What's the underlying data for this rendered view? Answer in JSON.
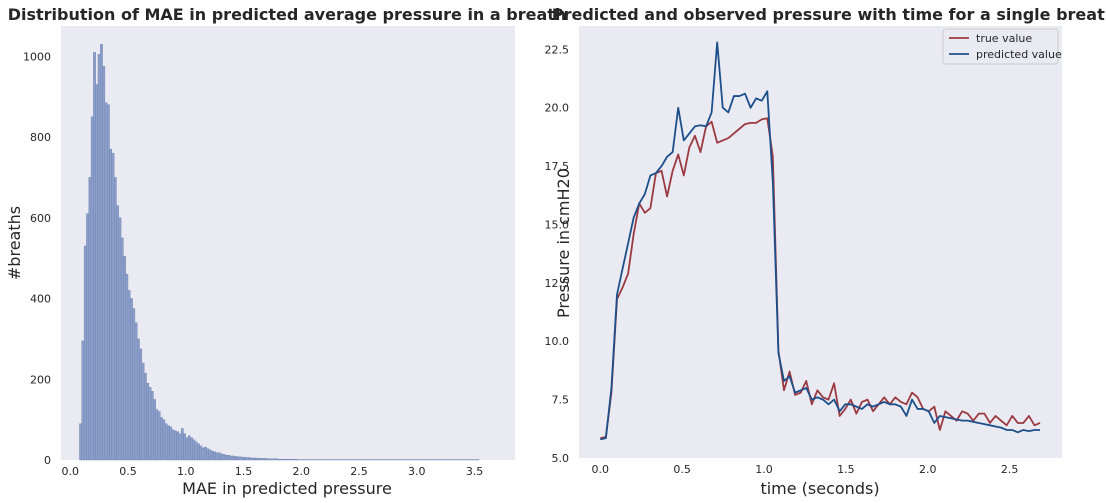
{
  "chart_data": [
    {
      "type": "bar",
      "title": "Distribution of MAE in predicted average pressure in a breath",
      "xlabel": "MAE in predicted pressure",
      "ylabel": "#breaths",
      "xlim": [
        -0.08,
        3.85
      ],
      "ylim": [
        0,
        1075
      ],
      "xticks": [
        "0.0",
        "0.5",
        "1.0",
        "1.5",
        "2.0",
        "2.5",
        "3.0",
        "3.5"
      ],
      "yticks": [
        "0",
        "200",
        "400",
        "600",
        "800",
        "1000"
      ],
      "grid": false,
      "bar_color": "#8c9fcb",
      "background": "#eaeaf2",
      "bin_width": 0.02,
      "bin_start": 0.08,
      "values": [
        90,
        295,
        530,
        610,
        700,
        850,
        1010,
        930,
        1005,
        1030,
        975,
        885,
        880,
        770,
        760,
        700,
        630,
        600,
        550,
        505,
        460,
        420,
        400,
        375,
        340,
        300,
        275,
        240,
        215,
        190,
        180,
        170,
        150,
        125,
        120,
        105,
        100,
        90,
        85,
        82,
        75,
        72,
        70,
        65,
        78,
        65,
        55,
        60,
        55,
        50,
        45,
        40,
        35,
        30,
        32,
        28,
        25,
        22,
        20,
        18,
        18,
        15,
        14,
        12,
        12,
        10,
        10,
        9,
        8,
        8,
        7,
        7,
        6,
        6,
        5,
        5,
        5,
        4,
        4,
        4,
        4,
        3,
        3,
        3,
        3,
        3,
        2,
        2,
        2,
        2,
        2,
        2,
        2,
        2,
        1,
        1,
        1,
        1,
        1,
        1,
        1,
        1,
        1,
        1,
        1,
        1,
        1,
        1,
        1,
        1,
        1,
        1,
        1,
        1,
        1,
        1,
        1,
        1,
        1,
        1,
        1,
        1,
        1,
        1,
        1,
        1,
        1,
        1,
        1,
        1,
        1,
        1,
        1,
        1,
        1,
        1,
        1,
        1,
        1,
        1,
        1,
        1,
        1,
        1,
        1,
        1,
        1,
        1,
        1,
        1,
        1,
        1,
        1,
        1,
        1,
        1,
        1,
        1,
        1,
        1,
        1,
        1,
        1,
        1,
        1,
        1,
        1,
        1,
        1,
        1,
        1,
        1,
        1
      ]
    },
    {
      "type": "line",
      "title": "Predicted and observed pressure with time for a single breath",
      "xlabel": "time (seconds)",
      "ylabel": "Pressure in cmH20",
      "xlim": [
        -0.13,
        2.82
      ],
      "ylim": [
        5.0,
        23.5
      ],
      "xticks": [
        "0.0",
        "0.5",
        "1.0",
        "1.5",
        "2.0",
        "2.5"
      ],
      "yticks": [
        "5.0",
        "7.5",
        "10.0",
        "12.5",
        "15.0",
        "17.5",
        "20.0",
        "22.5"
      ],
      "grid": false,
      "background": "#eaeaf2",
      "legend_position": "top-right",
      "x": [
        0.0,
        0.034,
        0.068,
        0.102,
        0.136,
        0.17,
        0.204,
        0.238,
        0.272,
        0.306,
        0.34,
        0.374,
        0.408,
        0.442,
        0.476,
        0.51,
        0.544,
        0.578,
        0.612,
        0.646,
        0.68,
        0.714,
        0.748,
        0.782,
        0.816,
        0.85,
        0.884,
        0.918,
        0.952,
        0.986,
        1.02,
        1.054,
        1.088,
        1.122,
        1.156,
        1.19,
        1.224,
        1.258,
        1.292,
        1.326,
        1.36,
        1.394,
        1.428,
        1.462,
        1.496,
        1.53,
        1.564,
        1.598,
        1.632,
        1.666,
        1.7,
        1.734,
        1.768,
        1.802,
        1.836,
        1.87,
        1.904,
        1.938,
        1.972,
        2.006,
        2.04,
        2.074,
        2.108,
        2.142,
        2.176,
        2.21,
        2.244,
        2.278,
        2.312,
        2.346,
        2.38,
        2.414,
        2.448,
        2.482,
        2.516,
        2.55,
        2.584,
        2.618,
        2.652,
        2.686
      ],
      "series": [
        {
          "name": "true value",
          "color": "#9b3a41",
          "values": [
            5.85,
            5.9,
            7.8,
            11.8,
            12.3,
            12.9,
            14.6,
            15.9,
            15.5,
            15.7,
            17.2,
            17.3,
            16.2,
            17.3,
            18.0,
            17.1,
            18.3,
            18.8,
            18.1,
            19.2,
            19.4,
            18.5,
            18.6,
            18.7,
            18.9,
            19.1,
            19.3,
            19.35,
            19.35,
            19.5,
            19.55,
            17.9,
            9.6,
            7.9,
            8.7,
            7.7,
            7.8,
            8.3,
            7.3,
            7.9,
            7.6,
            7.5,
            8.2,
            6.8,
            7.1,
            7.5,
            6.9,
            7.4,
            7.5,
            7.0,
            7.3,
            7.6,
            7.3,
            7.6,
            7.4,
            7.3,
            7.8,
            7.6,
            7.1,
            7.0,
            7.2,
            6.2,
            7.0,
            6.8,
            6.6,
            7.0,
            6.9,
            6.6,
            6.9,
            6.9,
            6.5,
            6.8,
            6.6,
            6.4,
            6.8,
            6.5,
            6.5,
            6.8,
            6.4,
            6.5
          ]
        },
        {
          "name": "predicted value",
          "color": "#1d4f8a",
          "values": [
            5.8,
            5.85,
            8.0,
            12.0,
            13.1,
            14.2,
            15.3,
            15.9,
            16.3,
            17.1,
            17.2,
            17.5,
            17.9,
            18.1,
            20.0,
            18.6,
            18.9,
            19.2,
            19.25,
            19.2,
            19.8,
            22.8,
            20.0,
            19.8,
            20.5,
            20.5,
            20.6,
            20.0,
            20.4,
            20.3,
            20.7,
            16.8,
            9.5,
            8.3,
            8.5,
            7.8,
            7.9,
            8.0,
            7.5,
            7.6,
            7.5,
            7.3,
            7.5,
            7.0,
            7.3,
            7.3,
            7.2,
            7.1,
            7.3,
            7.2,
            7.3,
            7.4,
            7.3,
            7.3,
            7.2,
            6.8,
            7.5,
            7.1,
            7.1,
            7.0,
            6.5,
            6.8,
            6.75,
            6.7,
            6.65,
            6.6,
            6.6,
            6.55,
            6.5,
            6.45,
            6.4,
            6.35,
            6.3,
            6.2,
            6.2,
            6.1,
            6.2,
            6.15,
            6.2,
            6.2
          ]
        }
      ]
    }
  ]
}
